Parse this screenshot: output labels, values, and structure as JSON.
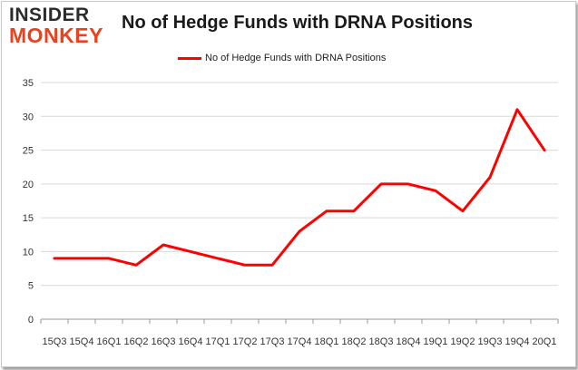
{
  "logo": {
    "line1": "INSIDER",
    "line2": "MONKEY"
  },
  "chart_data": {
    "type": "line",
    "title": "No of Hedge Funds with DRNA Positions",
    "xlabel": "",
    "ylabel": "",
    "categories": [
      "15Q3",
      "15Q4",
      "16Q1",
      "16Q2",
      "16Q3",
      "16Q4",
      "17Q1",
      "17Q2",
      "17Q3",
      "17Q4",
      "18Q1",
      "18Q2",
      "18Q3",
      "18Q4",
      "19Q1",
      "19Q2",
      "19Q3",
      "19Q4",
      "20Q1"
    ],
    "series": [
      {
        "name": "No of Hedge Funds with DRNA Positions",
        "color": "#ff0000",
        "values": [
          9,
          9,
          9,
          8,
          11,
          10,
          9,
          8,
          8,
          13,
          16,
          16,
          20,
          20,
          19,
          16,
          21,
          31,
          25
        ]
      }
    ],
    "ylim": [
      0,
      35
    ],
    "yticks": [
      0,
      5,
      10,
      15,
      20,
      25,
      30,
      35
    ],
    "grid": true,
    "legend": "top-center"
  }
}
